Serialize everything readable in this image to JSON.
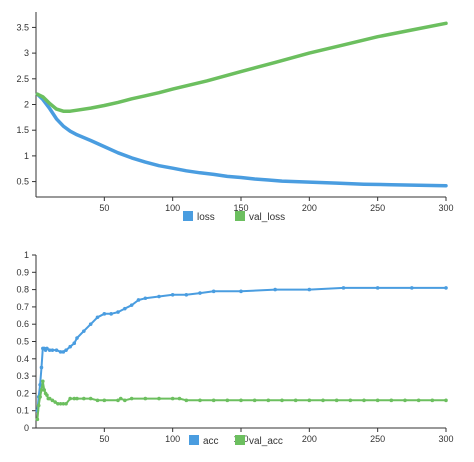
{
  "chart_data": [
    {
      "type": "line",
      "xlim": [
        0,
        300
      ],
      "ylim": [
        0.2,
        3.8
      ],
      "x_ticks": [
        50,
        100,
        150,
        200,
        250,
        300
      ],
      "y_ticks": [
        0.5,
        1,
        1.5,
        2,
        2.5,
        3,
        3.5
      ],
      "legend_position": "bottom-center",
      "grid": false,
      "series": [
        {
          "name": "loss",
          "color": "#4a9de0",
          "markers": false,
          "x": [
            1,
            5,
            10,
            15,
            20,
            25,
            30,
            40,
            50,
            60,
            70,
            80,
            90,
            100,
            110,
            120,
            130,
            140,
            150,
            160,
            170,
            180,
            190,
            200,
            220,
            240,
            260,
            280,
            300
          ],
          "values": [
            2.2,
            2.1,
            1.92,
            1.72,
            1.58,
            1.48,
            1.41,
            1.3,
            1.18,
            1.06,
            0.96,
            0.88,
            0.81,
            0.76,
            0.71,
            0.67,
            0.64,
            0.6,
            0.58,
            0.55,
            0.53,
            0.51,
            0.5,
            0.49,
            0.47,
            0.45,
            0.44,
            0.43,
            0.42
          ]
        },
        {
          "name": "val_loss",
          "color": "#6cbf5f",
          "markers": false,
          "x": [
            1,
            5,
            10,
            15,
            20,
            25,
            30,
            40,
            50,
            60,
            70,
            80,
            90,
            100,
            125,
            150,
            175,
            200,
            225,
            250,
            275,
            300
          ],
          "values": [
            2.2,
            2.15,
            2.02,
            1.91,
            1.87,
            1.87,
            1.89,
            1.93,
            1.98,
            2.04,
            2.11,
            2.17,
            2.23,
            2.3,
            2.46,
            2.64,
            2.82,
            3.0,
            3.16,
            3.32,
            3.45,
            3.58
          ]
        }
      ]
    },
    {
      "type": "line",
      "xlim": [
        0,
        300
      ],
      "ylim": [
        0,
        1
      ],
      "x_ticks": [
        50,
        100,
        150,
        200,
        250,
        300
      ],
      "y_ticks": [
        0,
        0.1,
        0.2,
        0.3,
        0.4,
        0.5,
        0.6,
        0.7,
        0.8,
        0.9,
        1
      ],
      "legend_position": "bottom-center",
      "grid": false,
      "series": [
        {
          "name": "acc",
          "color": "#4a9de0",
          "markers": true,
          "x": [
            1,
            2,
            3,
            4,
            5,
            6,
            7,
            8,
            10,
            12,
            15,
            18,
            20,
            22,
            25,
            28,
            30,
            35,
            40,
            45,
            50,
            55,
            60,
            65,
            70,
            75,
            80,
            90,
            100,
            110,
            120,
            130,
            150,
            175,
            200,
            225,
            250,
            275,
            300
          ],
          "values": [
            0.1,
            0.18,
            0.25,
            0.35,
            0.46,
            0.46,
            0.45,
            0.46,
            0.45,
            0.45,
            0.45,
            0.44,
            0.44,
            0.45,
            0.47,
            0.49,
            0.52,
            0.56,
            0.6,
            0.64,
            0.66,
            0.66,
            0.67,
            0.69,
            0.71,
            0.74,
            0.75,
            0.76,
            0.77,
            0.77,
            0.78,
            0.79,
            0.79,
            0.8,
            0.8,
            0.81,
            0.81,
            0.81,
            0.81
          ]
        },
        {
          "name": "val_acc",
          "color": "#6cbf5f",
          "markers": true,
          "x": [
            1,
            2,
            3,
            4,
            5,
            6,
            7,
            8,
            9,
            10,
            12,
            14,
            16,
            18,
            20,
            22,
            25,
            28,
            30,
            35,
            40,
            45,
            50,
            60,
            62,
            65,
            70,
            80,
            90,
            100,
            105,
            110,
            120,
            130,
            140,
            150,
            160,
            170,
            180,
            190,
            200,
            210,
            220,
            230,
            240,
            250,
            260,
            270,
            280,
            290,
            300
          ],
          "values": [
            0.05,
            0.13,
            0.18,
            0.22,
            0.27,
            0.22,
            0.2,
            0.19,
            0.17,
            0.17,
            0.16,
            0.15,
            0.14,
            0.14,
            0.14,
            0.14,
            0.17,
            0.17,
            0.17,
            0.17,
            0.17,
            0.16,
            0.16,
            0.16,
            0.17,
            0.16,
            0.17,
            0.17,
            0.17,
            0.17,
            0.17,
            0.16,
            0.16,
            0.16,
            0.16,
            0.16,
            0.16,
            0.16,
            0.16,
            0.16,
            0.16,
            0.16,
            0.16,
            0.16,
            0.16,
            0.16,
            0.16,
            0.16,
            0.16,
            0.16,
            0.16
          ]
        }
      ]
    }
  ]
}
